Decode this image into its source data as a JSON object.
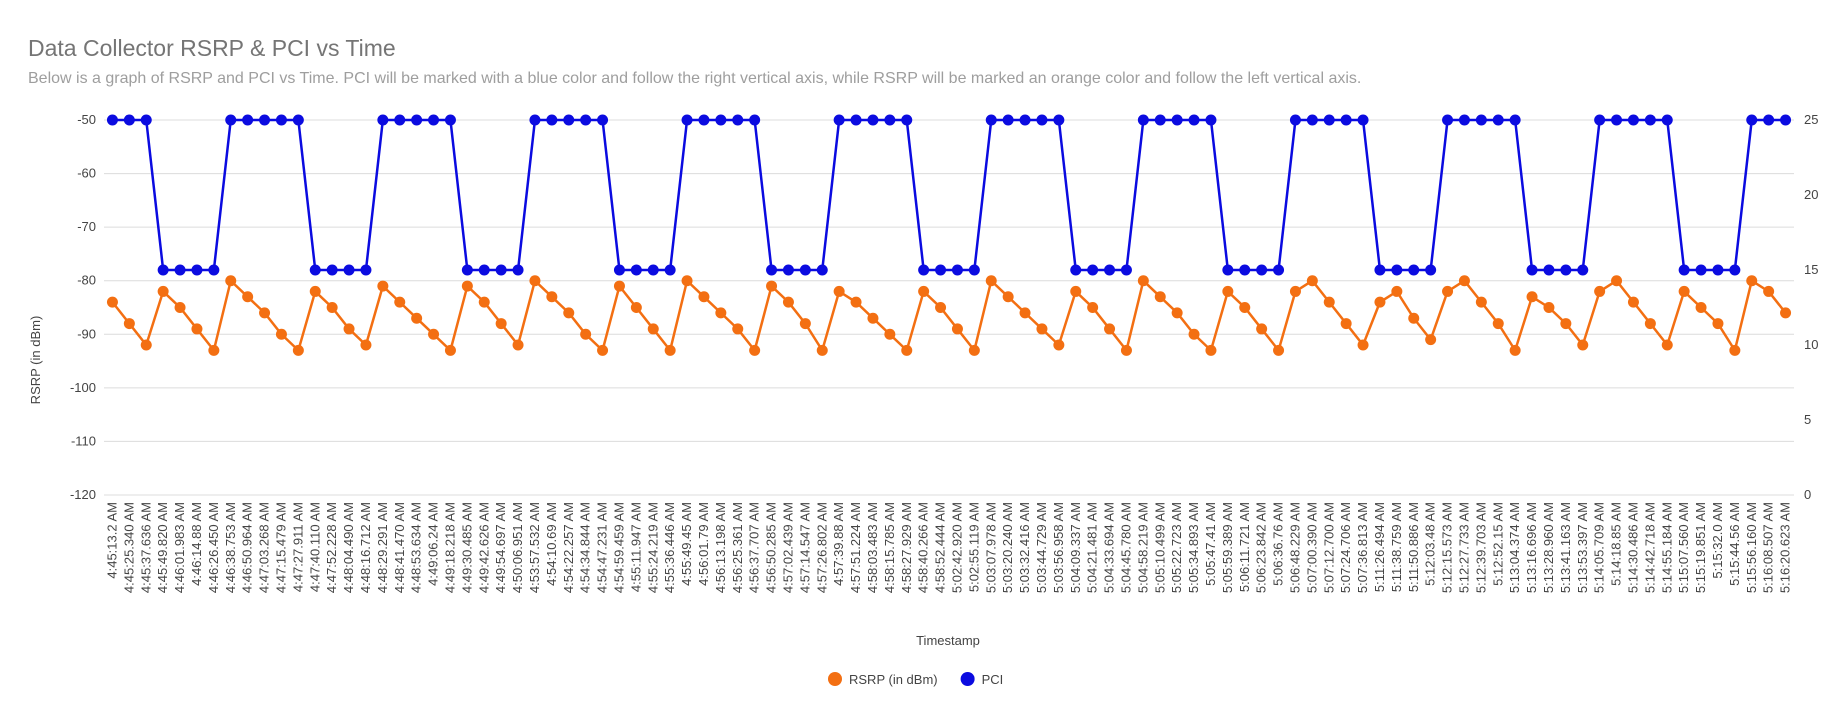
{
  "chart_data": {
    "type": "line",
    "title": "Data Collector RSRP & PCI vs Time",
    "subtitle": "Below is a graph of RSRP and PCI vs Time. PCI will be marked with a blue color and follow the right vertical axis, while RSRP will be marked an orange color and follow the left vertical axis.",
    "x_label": "Timestamp",
    "y_label": "RSRP (in dBm)",
    "categories": [
      "4:45:13.2 AM",
      "4:45:25.340 AM",
      "4:45:37.636 AM",
      "4:45:49.820 AM",
      "4:46:01.983 AM",
      "4:46:14.88 AM",
      "4:46:26.450 AM",
      "4:46:38.753 AM",
      "4:46:50.964 AM",
      "4:47:03.268 AM",
      "4:47:15.479 AM",
      "4:47:27.911 AM",
      "4:47:40.110 AM",
      "4:47:52.228 AM",
      "4:48:04.490 AM",
      "4:48:16.712 AM",
      "4:48:29.291 AM",
      "4:48:41.470 AM",
      "4:48:53.634 AM",
      "4:49:06.24 AM",
      "4:49:18.218 AM",
      "4:49:30.485 AM",
      "4:49:42.626 AM",
      "4:49:54.697 AM",
      "4:50:06.951 AM",
      "4:53:57.532 AM",
      "4:54:10.69 AM",
      "4:54:22.257 AM",
      "4:54:34.844 AM",
      "4:54:47.231 AM",
      "4:54:59.459 AM",
      "4:55:11.947 AM",
      "4:55:24.219 AM",
      "4:55:36.446 AM",
      "4:55:49.45 AM",
      "4:56:01.79 AM",
      "4:56:13.198 AM",
      "4:56:25.361 AM",
      "4:56:37.707 AM",
      "4:56:50.285 AM",
      "4:57:02.439 AM",
      "4:57:14.547 AM",
      "4:57:26.802 AM",
      "4:57:39.88 AM",
      "4:57:51.224 AM",
      "4:58:03.483 AM",
      "4:58:15.785 AM",
      "4:58:27.929 AM",
      "4:58:40.266 AM",
      "4:58:52.444 AM",
      "5:02:42.920 AM",
      "5:02:55.119 AM",
      "5:03:07.978 AM",
      "5:03:20.240 AM",
      "5:03:32.416 AM",
      "5:03:44.729 AM",
      "5:03:56.958 AM",
      "5:04:09.337 AM",
      "5:04:21.481 AM",
      "5:04:33.694 AM",
      "5:04:45.780 AM",
      "5:04:58.219 AM",
      "5:05:10.499 AM",
      "5:05:22.723 AM",
      "5:05:34.893 AM",
      "5:05:47.41 AM",
      "5:05:59.389 AM",
      "5:06:11.721 AM",
      "5:06:23.842 AM",
      "5:06:36.76 AM",
      "5:06:48.229 AM",
      "5:07:00.390 AM",
      "5:07:12.700 AM",
      "5:07:24.706 AM",
      "5:07:36.813 AM",
      "5:11:26.494 AM",
      "5:11:38.759 AM",
      "5:11:50.886 AM",
      "5:12:03.48 AM",
      "5:12:15.573 AM",
      "5:12:27.733 AM",
      "5:12:39.703 AM",
      "5:12:52.15 AM",
      "5:13:04.374 AM",
      "5:13:16.696 AM",
      "5:13:28.960 AM",
      "5:13:41.163 AM",
      "5:13:53.397 AM",
      "5:14:05.709 AM",
      "5:14:18.85 AM",
      "5:14:30.486 AM",
      "5:14:42.718 AM",
      "5:14:55.184 AM",
      "5:15:07.560 AM",
      "5:15:19.851 AM",
      "5:15:32.0 AM",
      "5:15:44.56 AM",
      "5:15:56.160 AM",
      "5:16:08.507 AM",
      "5:16:20.623 AM"
    ],
    "series": [
      {
        "name": "RSRP (in dBm)",
        "color": "#f36f12",
        "values": [
          -84,
          -88,
          -92,
          -82,
          -85,
          -89,
          -93,
          -80,
          -83,
          -86,
          -90,
          -93,
          -82,
          -85,
          -89,
          -92,
          -81,
          -84,
          -87,
          -90,
          -93,
          -81,
          -84,
          -88,
          -92,
          -80,
          -83,
          -86,
          -90,
          -93,
          -81,
          -85,
          -89,
          -93,
          -80,
          -83,
          -86,
          -89,
          -93,
          -81,
          -84,
          -88,
          -93,
          -82,
          -84,
          -87,
          -90,
          -93,
          -82,
          -85,
          -89,
          -93,
          -80,
          -83,
          -86,
          -89,
          -92,
          -82,
          -85,
          -89,
          -93,
          -80,
          -83,
          -86,
          -90,
          -93,
          -82,
          -85,
          -89,
          -93,
          -82,
          -80,
          -84,
          -88,
          -92,
          -84,
          -82,
          -87,
          -91,
          -82,
          -80,
          -84,
          -88,
          -93,
          -83,
          -85,
          -88,
          -92,
          -82,
          -80,
          -84,
          -88,
          -92,
          -82,
          -85,
          -88,
          -93,
          -80,
          -82,
          -86
        ]
      },
      {
        "name": "PCI",
        "color": "#0b0be0",
        "axis": "y2",
        "values": [
          25,
          25,
          25,
          15,
          15,
          15,
          15,
          25,
          25,
          25,
          25,
          25,
          15,
          15,
          15,
          15,
          25,
          25,
          25,
          25,
          25,
          15,
          15,
          15,
          15,
          25,
          25,
          25,
          25,
          25,
          15,
          15,
          15,
          15,
          25,
          25,
          25,
          25,
          25,
          15,
          15,
          15,
          15,
          25,
          25,
          25,
          25,
          25,
          15,
          15,
          15,
          15,
          25,
          25,
          25,
          25,
          25,
          15,
          15,
          15,
          15,
          25,
          25,
          25,
          25,
          25,
          15,
          15,
          15,
          15,
          25,
          25,
          25,
          25,
          25,
          15,
          15,
          15,
          15,
          25,
          25,
          25,
          25,
          25,
          15,
          15,
          15,
          15,
          25,
          25,
          25,
          25,
          25,
          15,
          15,
          15,
          15,
          25,
          25,
          25
        ]
      }
    ],
    "ylim": [
      -120,
      -50
    ],
    "yticks": [
      -120,
      -110,
      -100,
      -90,
      -80,
      -70,
      -60,
      -50
    ],
    "y2lim": [
      0,
      25
    ],
    "y2ticks": [
      0,
      5,
      10,
      15,
      20,
      25
    ],
    "grid": true,
    "legend": "bottom"
  }
}
